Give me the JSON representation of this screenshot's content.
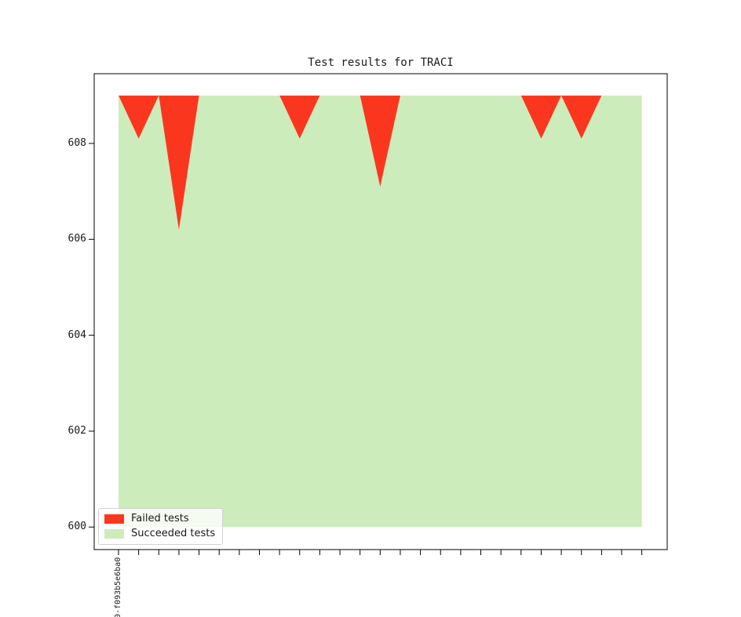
{
  "figure": {
    "title": "Test results for TRACI"
  },
  "chart_data": {
    "type": "area",
    "stacked": true,
    "title": "Test results for TRACI",
    "xlabel": "",
    "ylabel": "",
    "n_points": 27,
    "x": [
      0,
      1,
      2,
      3,
      4,
      5,
      6,
      7,
      8,
      9,
      10,
      11,
      12,
      13,
      14,
      15,
      16,
      17,
      18,
      19,
      20,
      21,
      22,
      23,
      24,
      25,
      26
    ],
    "first_x_tick_label": "0-f093b5e6ba0",
    "baseline": 600,
    "total_per_point": 609,
    "series": [
      {
        "name": "Failed tests",
        "color": "#fa371e",
        "values": [
          0,
          0.9,
          0,
          2.8,
          0,
          0,
          0,
          0,
          0,
          0.9,
          0,
          0,
          0,
          1.9,
          0,
          0,
          0,
          0,
          0,
          0,
          0,
          0.9,
          0,
          0.9,
          0,
          0,
          0
        ]
      },
      {
        "name": "Succeeded tests",
        "color": "#cdecbb",
        "values": [
          609,
          608.1,
          609,
          606.2,
          609,
          609,
          609,
          609,
          609,
          608.1,
          609,
          609,
          609,
          607.1,
          609,
          609,
          609,
          609,
          609,
          609,
          609,
          608.1,
          609,
          608.1,
          609,
          609,
          609
        ]
      }
    ],
    "yticks": [
      608,
      606,
      604,
      602,
      600
    ],
    "ylim": [
      599.53,
      609.455
    ],
    "grid": false,
    "legend": {
      "position": "lower left",
      "items": [
        "Failed tests",
        "Succeeded tests"
      ]
    }
  },
  "colors": {
    "failed": "#fa371e",
    "succeeded": "#cdecbb",
    "spine": "#000000",
    "text": "#1a1a1a",
    "legend_border": "#d2d2d2"
  },
  "x_axis": {
    "first_tick_label": "0-f093b5e6ba0"
  }
}
